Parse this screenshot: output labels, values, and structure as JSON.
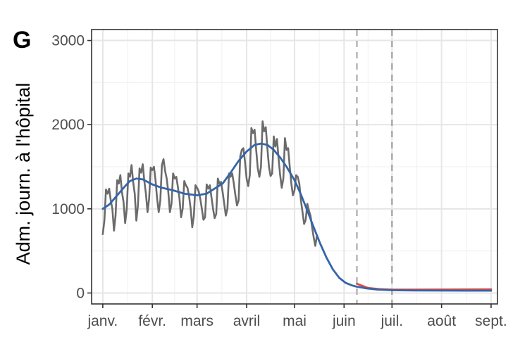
{
  "panel_label": "G",
  "chart_data": {
    "type": "line",
    "title": "",
    "xlabel": "",
    "ylabel": "Adm. journ. à l'hôpital",
    "x_range": [
      "2021-12-25",
      "2022-09-05"
    ],
    "ylim": [
      -130,
      3130
    ],
    "grid": true,
    "legend": "none",
    "x_ticks": [
      {
        "date": "2022-01-01",
        "label": "janv."
      },
      {
        "date": "2022-02-01",
        "label": "févr."
      },
      {
        "date": "2022-03-01",
        "label": "mars"
      },
      {
        "date": "2022-04-01",
        "label": "avril"
      },
      {
        "date": "2022-05-01",
        "label": "mai"
      },
      {
        "date": "2022-06-01",
        "label": "juin"
      },
      {
        "date": "2022-07-01",
        "label": "juil."
      },
      {
        "date": "2022-08-01",
        "label": "août"
      },
      {
        "date": "2022-09-01",
        "label": "sept."
      }
    ],
    "y_ticks": [
      0,
      1000,
      2000,
      3000
    ],
    "vlines": [
      {
        "date": "2022-06-09",
        "style": "dashed",
        "color": "#b3b3b3"
      },
      {
        "date": "2022-07-01",
        "style": "dashed",
        "color": "#a6a6a6"
      }
    ],
    "series": [
      {
        "color": "#6b6b6b",
        "style": "observed",
        "points": [
          [
            "2022-01-01",
            700
          ],
          [
            "2022-01-02",
            860
          ],
          [
            "2022-01-03",
            1230
          ],
          [
            "2022-01-04",
            1180
          ],
          [
            "2022-01-05",
            1240
          ],
          [
            "2022-01-06",
            1100
          ],
          [
            "2022-01-07",
            1000
          ],
          [
            "2022-01-08",
            740
          ],
          [
            "2022-01-09",
            920
          ],
          [
            "2022-01-10",
            1340
          ],
          [
            "2022-01-11",
            1300
          ],
          [
            "2022-01-12",
            1400
          ],
          [
            "2022-01-13",
            1200
          ],
          [
            "2022-01-14",
            1080
          ],
          [
            "2022-01-15",
            830
          ],
          [
            "2022-01-16",
            1000
          ],
          [
            "2022-01-17",
            1420
          ],
          [
            "2022-01-18",
            1380
          ],
          [
            "2022-01-19",
            1520
          ],
          [
            "2022-01-20",
            1320
          ],
          [
            "2022-01-21",
            1180
          ],
          [
            "2022-01-22",
            860
          ],
          [
            "2022-01-23",
            1040
          ],
          [
            "2022-01-24",
            1480
          ],
          [
            "2022-01-25",
            1430
          ],
          [
            "2022-01-26",
            1530
          ],
          [
            "2022-01-27",
            1330
          ],
          [
            "2022-01-28",
            1180
          ],
          [
            "2022-01-29",
            960
          ],
          [
            "2022-01-30",
            1120
          ],
          [
            "2022-01-31",
            1490
          ],
          [
            "2022-02-01",
            1460
          ],
          [
            "2022-02-02",
            1500
          ],
          [
            "2022-02-03",
            1340
          ],
          [
            "2022-02-04",
            1120
          ],
          [
            "2022-02-05",
            960
          ],
          [
            "2022-02-06",
            1100
          ],
          [
            "2022-02-07",
            1520
          ],
          [
            "2022-02-08",
            1590
          ],
          [
            "2022-02-09",
            1450
          ],
          [
            "2022-02-10",
            1360
          ],
          [
            "2022-02-11",
            1200
          ],
          [
            "2022-02-12",
            960
          ],
          [
            "2022-02-13",
            1060
          ],
          [
            "2022-02-14",
            1420
          ],
          [
            "2022-02-15",
            1360
          ],
          [
            "2022-02-16",
            1380
          ],
          [
            "2022-02-17",
            1260
          ],
          [
            "2022-02-18",
            1120
          ],
          [
            "2022-02-19",
            900
          ],
          [
            "2022-02-20",
            1000
          ],
          [
            "2022-02-21",
            1330
          ],
          [
            "2022-02-22",
            1280
          ],
          [
            "2022-02-23",
            1250
          ],
          [
            "2022-02-24",
            1150
          ],
          [
            "2022-02-25",
            1000
          ],
          [
            "2022-02-26",
            780
          ],
          [
            "2022-02-27",
            920
          ],
          [
            "2022-02-28",
            1280
          ],
          [
            "2022-03-01",
            1250
          ],
          [
            "2022-03-02",
            1210
          ],
          [
            "2022-03-03",
            1120
          ],
          [
            "2022-03-04",
            1000
          ],
          [
            "2022-03-05",
            870
          ],
          [
            "2022-03-06",
            900
          ],
          [
            "2022-03-07",
            1290
          ],
          [
            "2022-03-08",
            1240
          ],
          [
            "2022-03-09",
            1280
          ],
          [
            "2022-03-10",
            1140
          ],
          [
            "2022-03-11",
            1000
          ],
          [
            "2022-03-12",
            890
          ],
          [
            "2022-03-13",
            940
          ],
          [
            "2022-03-14",
            1360
          ],
          [
            "2022-03-15",
            1300
          ],
          [
            "2022-03-16",
            1320
          ],
          [
            "2022-03-17",
            1200
          ],
          [
            "2022-03-18",
            1060
          ],
          [
            "2022-03-19",
            920
          ],
          [
            "2022-03-20",
            1000
          ],
          [
            "2022-03-21",
            1420
          ],
          [
            "2022-03-22",
            1380
          ],
          [
            "2022-03-23",
            1420
          ],
          [
            "2022-03-24",
            1300
          ],
          [
            "2022-03-25",
            1160
          ],
          [
            "2022-03-26",
            1040
          ],
          [
            "2022-03-27",
            1100
          ],
          [
            "2022-03-28",
            1620
          ],
          [
            "2022-03-29",
            1700
          ],
          [
            "2022-03-30",
            1720
          ],
          [
            "2022-03-31",
            1560
          ],
          [
            "2022-04-01",
            1360
          ],
          [
            "2022-04-02",
            1270
          ],
          [
            "2022-04-03",
            1400
          ],
          [
            "2022-04-04",
            1960
          ],
          [
            "2022-04-05",
            1900
          ],
          [
            "2022-04-06",
            1940
          ],
          [
            "2022-04-07",
            1700
          ],
          [
            "2022-04-08",
            1480
          ],
          [
            "2022-04-09",
            1380
          ],
          [
            "2022-04-10",
            1500
          ],
          [
            "2022-04-11",
            2040
          ],
          [
            "2022-04-12",
            1920
          ],
          [
            "2022-04-13",
            1970
          ],
          [
            "2022-04-14",
            1720
          ],
          [
            "2022-04-15",
            1500
          ],
          [
            "2022-04-16",
            1390
          ],
          [
            "2022-04-17",
            1420
          ],
          [
            "2022-04-18",
            1860
          ],
          [
            "2022-04-19",
            1740
          ],
          [
            "2022-04-20",
            1830
          ],
          [
            "2022-04-21",
            1600
          ],
          [
            "2022-04-22",
            1400
          ],
          [
            "2022-04-23",
            1250
          ],
          [
            "2022-04-24",
            1360
          ],
          [
            "2022-04-25",
            1840
          ],
          [
            "2022-04-26",
            1700
          ],
          [
            "2022-04-27",
            1720
          ],
          [
            "2022-04-28",
            1500
          ],
          [
            "2022-04-29",
            1300
          ],
          [
            "2022-04-30",
            1160
          ],
          [
            "2022-05-01",
            1220
          ],
          [
            "2022-05-02",
            1400
          ],
          [
            "2022-05-03",
            1380
          ],
          [
            "2022-05-04",
            1300
          ],
          [
            "2022-05-05",
            1100
          ],
          [
            "2022-05-06",
            960
          ],
          [
            "2022-05-07",
            820
          ],
          [
            "2022-05-08",
            870
          ],
          [
            "2022-05-09",
            1060
          ],
          [
            "2022-05-10",
            980
          ],
          [
            "2022-05-11",
            920
          ],
          [
            "2022-05-12",
            780
          ],
          [
            "2022-05-13",
            660
          ],
          [
            "2022-05-14",
            560
          ],
          [
            "2022-05-15",
            680
          ]
        ]
      },
      {
        "color": "#dd4a43",
        "style": "projection",
        "points": [
          [
            "2022-06-09",
            110
          ],
          [
            "2022-06-16",
            60
          ],
          [
            "2022-06-23",
            46
          ],
          [
            "2022-07-01",
            40
          ],
          [
            "2022-07-15",
            40
          ],
          [
            "2022-08-01",
            41
          ],
          [
            "2022-08-15",
            42
          ],
          [
            "2022-09-01",
            43
          ]
        ]
      },
      {
        "color": "#3565a8",
        "style": "model",
        "points": [
          [
            "2022-01-01",
            1000
          ],
          [
            "2022-01-05",
            1050
          ],
          [
            "2022-01-10",
            1160
          ],
          [
            "2022-01-15",
            1270
          ],
          [
            "2022-01-18",
            1330
          ],
          [
            "2022-01-22",
            1360
          ],
          [
            "2022-01-26",
            1350
          ],
          [
            "2022-02-01",
            1290
          ],
          [
            "2022-02-07",
            1250
          ],
          [
            "2022-02-14",
            1220
          ],
          [
            "2022-02-21",
            1180
          ],
          [
            "2022-03-01",
            1160
          ],
          [
            "2022-03-07",
            1180
          ],
          [
            "2022-03-12",
            1240
          ],
          [
            "2022-03-17",
            1300
          ],
          [
            "2022-03-22",
            1430
          ],
          [
            "2022-03-27",
            1570
          ],
          [
            "2022-04-01",
            1680
          ],
          [
            "2022-04-06",
            1760
          ],
          [
            "2022-04-10",
            1775
          ],
          [
            "2022-04-14",
            1760
          ],
          [
            "2022-04-18",
            1700
          ],
          [
            "2022-04-22",
            1610
          ],
          [
            "2022-04-26",
            1500
          ],
          [
            "2022-05-01",
            1340
          ],
          [
            "2022-05-05",
            1170
          ],
          [
            "2022-05-09",
            980
          ],
          [
            "2022-05-13",
            780
          ],
          [
            "2022-05-17",
            590
          ],
          [
            "2022-05-21",
            420
          ],
          [
            "2022-05-25",
            280
          ],
          [
            "2022-05-29",
            180
          ],
          [
            "2022-06-02",
            120
          ],
          [
            "2022-06-06",
            90
          ],
          [
            "2022-06-09",
            75
          ],
          [
            "2022-06-15",
            55
          ],
          [
            "2022-06-22",
            40
          ],
          [
            "2022-07-01",
            33
          ],
          [
            "2022-07-15",
            30
          ],
          [
            "2022-08-01",
            29
          ],
          [
            "2022-08-15",
            28
          ],
          [
            "2022-09-01",
            28
          ]
        ]
      }
    ]
  }
}
